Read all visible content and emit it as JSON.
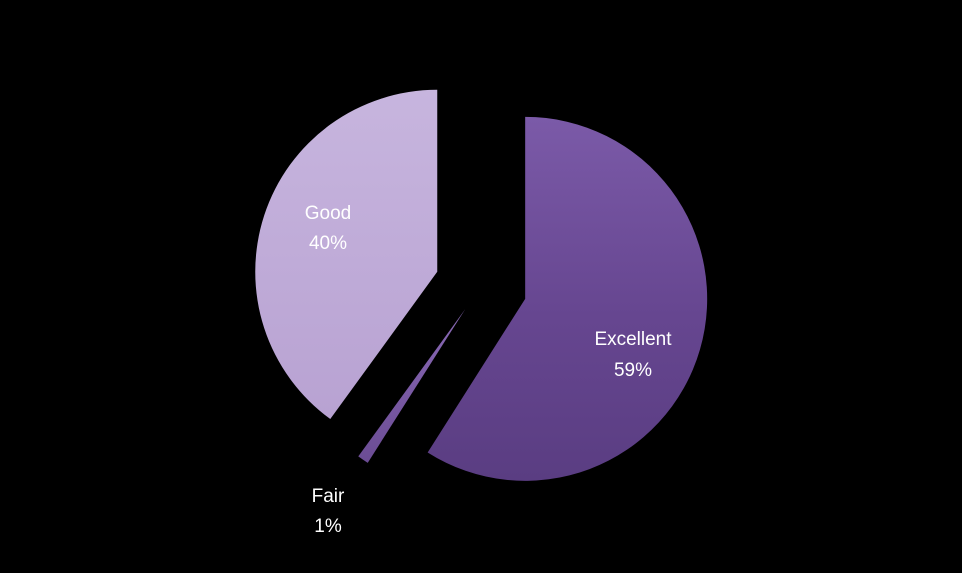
{
  "chart_data": {
    "type": "pie",
    "title": "",
    "slices": [
      {
        "label": "Excellent",
        "value": 59,
        "display": "59%",
        "color": "#6b4c94"
      },
      {
        "label": "Fair",
        "value": 1,
        "display": "1%",
        "color": "#7a5aa6"
      },
      {
        "label": "Good",
        "value": 40,
        "display": "40%",
        "color": "#c4b1da"
      }
    ],
    "exploded": true,
    "legend": "none",
    "data_labels": "category-and-percent"
  }
}
